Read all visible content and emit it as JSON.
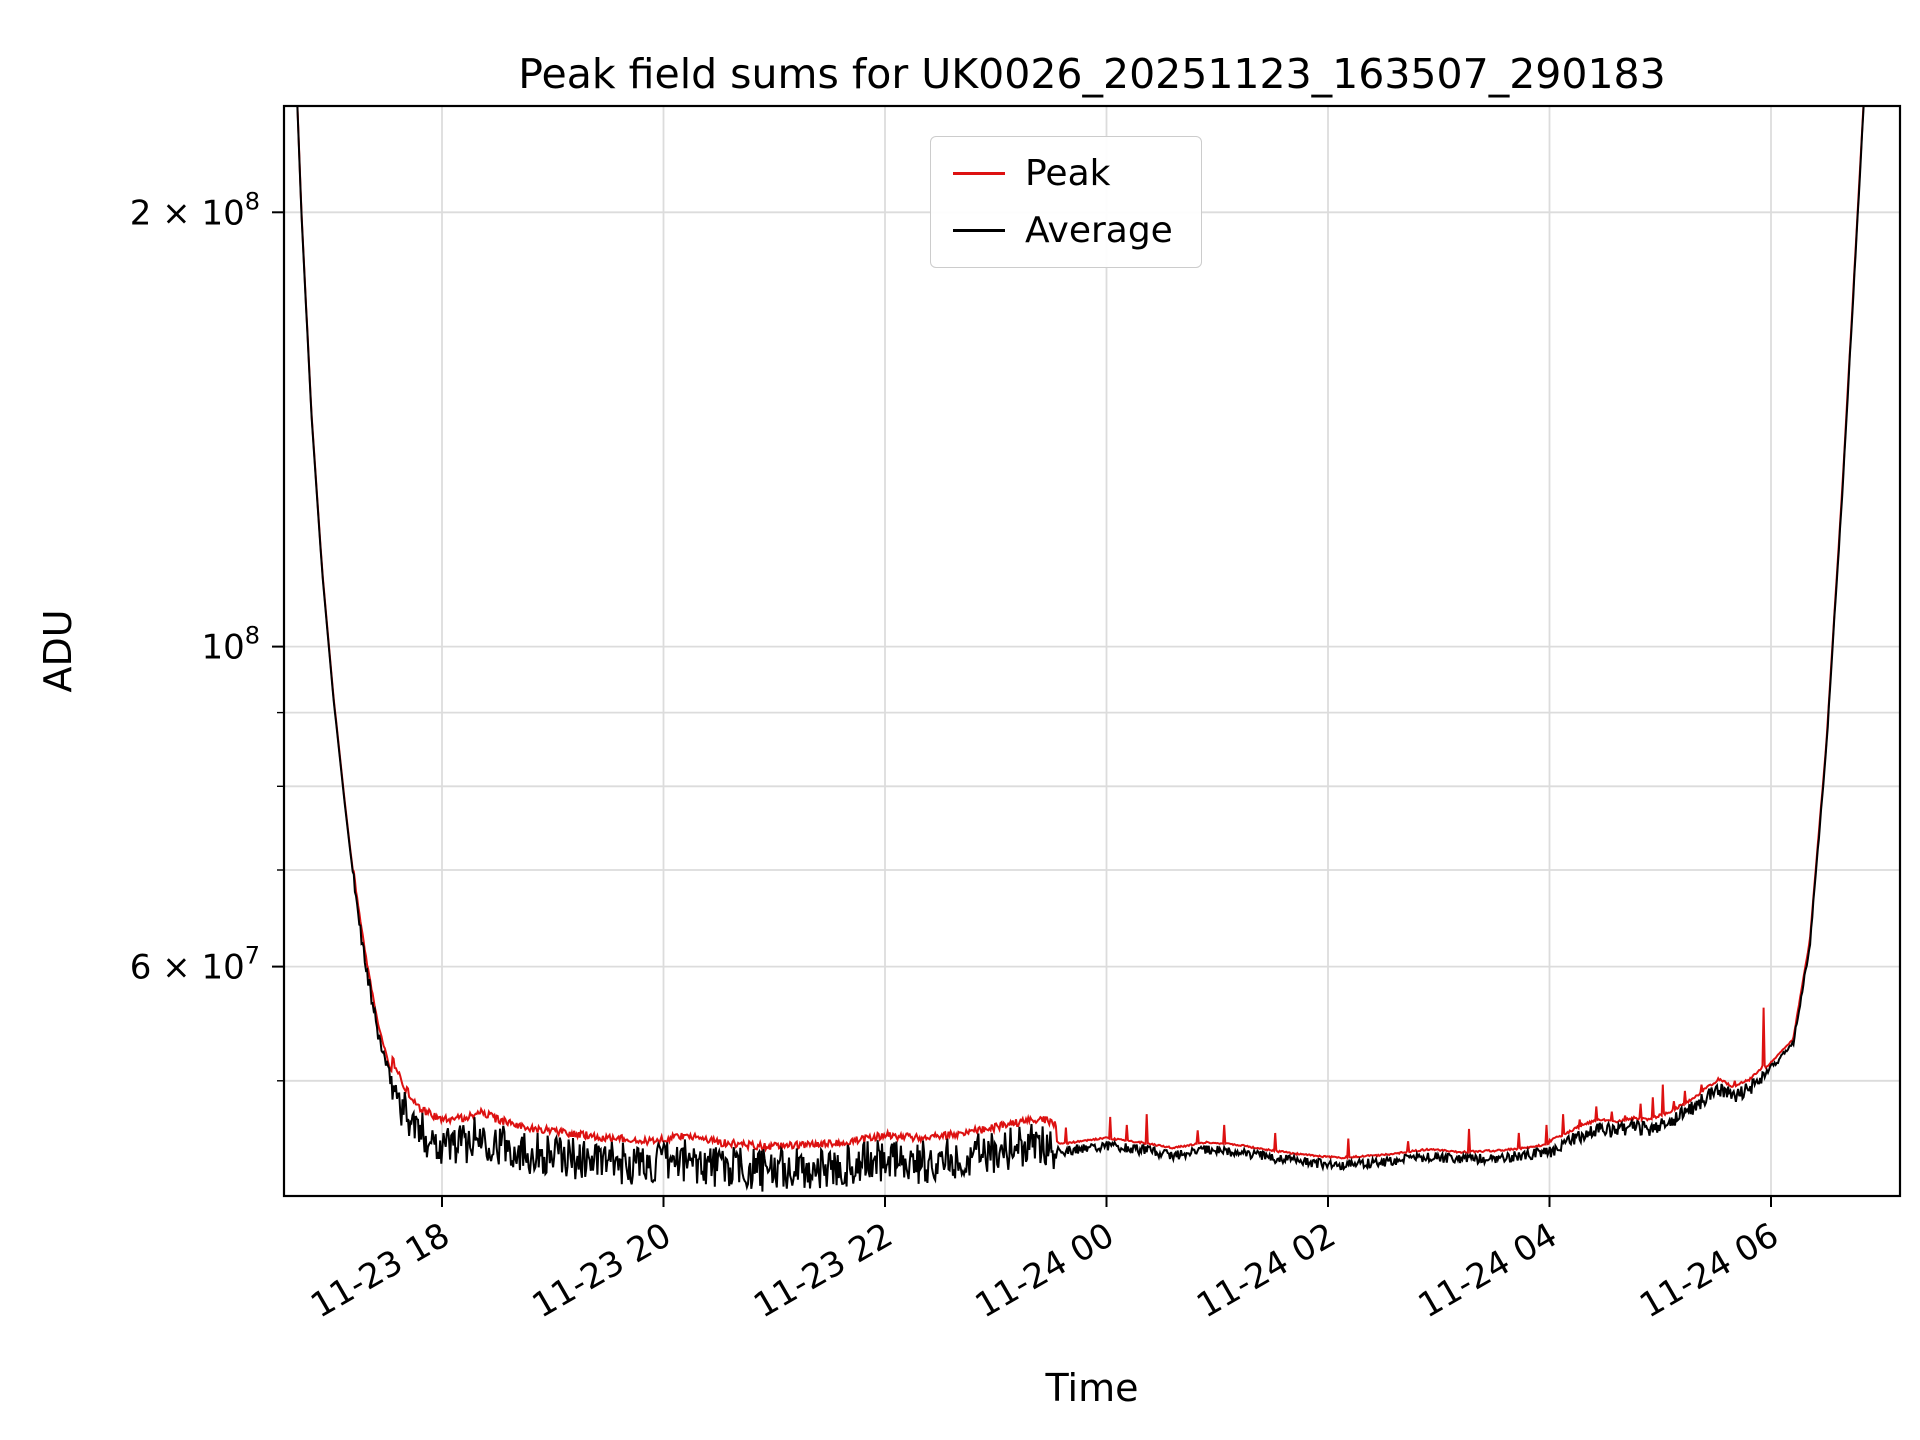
{
  "title": "Peak field sums for UK0026_20251123_163507_290183",
  "axes": {
    "xlabel": "Time",
    "ylabel": "ADU"
  },
  "legend": {
    "location": "upper center",
    "entries": [
      {
        "label": "Peak",
        "color": "#dd1111"
      },
      {
        "label": "Average",
        "color": "#000000"
      }
    ]
  },
  "chart_data": {
    "type": "line",
    "title": "Peak field sums for UK0026_20251123_163507_290183",
    "xlabel": "Time",
    "ylabel": "ADU",
    "yscale": "log",
    "grid": true,
    "x_unit": "hours since 2025-11-23 16:00",
    "xlim": [
      0.573,
      15.165
    ],
    "ylim": [
      41600000.0,
      237000000.0
    ],
    "x_ticks": [
      {
        "t": 2,
        "label": "11-23 18"
      },
      {
        "t": 4,
        "label": "11-23 20"
      },
      {
        "t": 6,
        "label": "11-23 22"
      },
      {
        "t": 8,
        "label": "11-24 00"
      },
      {
        "t": 10,
        "label": "11-24 02"
      },
      {
        "t": 12,
        "label": "11-24 04"
      },
      {
        "t": 14,
        "label": "11-24 06"
      }
    ],
    "y_ticks": [
      {
        "v": 200000000.0,
        "major": true,
        "base": "2 × 10",
        "exp": "8"
      },
      {
        "v": 100000000.0,
        "major": true,
        "base": "10",
        "exp": "8"
      },
      {
        "v": 90000000.0,
        "major": false
      },
      {
        "v": 80000000.0,
        "major": false
      },
      {
        "v": 70000000.0,
        "major": false
      },
      {
        "v": 60000000.0,
        "major": true,
        "base": "6 × 10",
        "exp": "7"
      },
      {
        "v": 50000000.0,
        "major": false
      }
    ],
    "series": [
      {
        "name": "Peak",
        "color": "#dd1111",
        "derived": "envelope_top_of_base_plus_spikes"
      },
      {
        "name": "Average",
        "color": "#000000",
        "derived": "base_with_noise_band"
      }
    ],
    "base_points": [
      [
        0.57,
        450000000.0
      ],
      [
        0.65,
        290000000.0
      ],
      [
        0.73,
        200000000.0
      ],
      [
        0.82,
        145000000.0
      ],
      [
        0.92,
        112000000.0
      ],
      [
        1.02,
        92000000.0
      ],
      [
        1.12,
        78000000.0
      ],
      [
        1.22,
        67000000.0
      ],
      [
        1.32,
        59500000.0
      ],
      [
        1.42,
        54000000.0
      ],
      [
        1.52,
        50500000.0
      ],
      [
        1.65,
        47800000.0
      ],
      [
        1.8,
        46000000.0
      ],
      [
        2.0,
        45200000.0
      ],
      [
        2.2,
        45300000.0
      ],
      [
        2.35,
        45800000.0
      ],
      [
        2.5,
        45200000.0
      ],
      [
        2.8,
        44600000.0
      ],
      [
        3.1,
        44300000.0
      ],
      [
        3.5,
        43900000.0
      ],
      [
        3.9,
        43700000.0
      ],
      [
        4.2,
        44100000.0
      ],
      [
        4.5,
        43600000.0
      ],
      [
        4.9,
        43300000.0
      ],
      [
        5.3,
        43400000.0
      ],
      [
        5.7,
        43700000.0
      ],
      [
        6.0,
        44100000.0
      ],
      [
        6.3,
        43900000.0
      ],
      [
        6.6,
        44100000.0
      ],
      [
        6.9,
        44500000.0
      ],
      [
        7.2,
        45000000.0
      ],
      [
        7.4,
        45300000.0
      ],
      [
        7.6,
        44700000.0
      ],
      [
        7.8,
        44900000.0
      ],
      [
        8.0,
        45100000.0
      ],
      [
        8.3,
        44800000.0
      ],
      [
        8.6,
        44400000.0
      ],
      [
        8.9,
        44800000.0
      ],
      [
        9.2,
        44600000.0
      ],
      [
        9.5,
        44200000.0
      ],
      [
        9.8,
        43900000.0
      ],
      [
        10.1,
        43700000.0
      ],
      [
        10.5,
        43900000.0
      ],
      [
        10.9,
        44300000.0
      ],
      [
        11.2,
        44100000.0
      ],
      [
        11.5,
        44200000.0
      ],
      [
        11.8,
        44400000.0
      ],
      [
        12.0,
        44700000.0
      ],
      [
        12.15,
        45300000.0
      ],
      [
        12.3,
        45900000.0
      ],
      [
        12.45,
        46300000.0
      ],
      [
        12.6,
        46100000.0
      ],
      [
        12.75,
        46400000.0
      ],
      [
        12.9,
        46300000.0
      ],
      [
        13.1,
        46900000.0
      ],
      [
        13.3,
        47900000.0
      ],
      [
        13.45,
        48900000.0
      ],
      [
        13.55,
        49300000.0
      ],
      [
        13.65,
        48800000.0
      ],
      [
        13.8,
        49300000.0
      ],
      [
        13.95,
        50600000.0
      ],
      [
        14.2,
        53000000.0
      ],
      [
        14.35,
        62000000.0
      ],
      [
        14.5,
        85000000.0
      ],
      [
        14.65,
        130000000.0
      ],
      [
        14.8,
        210000000.0
      ],
      [
        14.95,
        340000000.0
      ],
      [
        15.1,
        520000000.0
      ]
    ],
    "noise_segments": [
      [
        1.2,
        1.55,
        0.005
      ],
      [
        1.55,
        7.55,
        0.015
      ],
      [
        7.55,
        12.0,
        0.0035
      ],
      [
        12.0,
        13.95,
        0.005
      ],
      [
        13.95,
        15.2,
        0.002
      ]
    ],
    "spikes": [
      [
        7.45,
        47000000.0
      ],
      [
        7.63,
        46400000.0
      ],
      [
        8.03,
        47200000.0
      ],
      [
        8.18,
        46600000.0
      ],
      [
        8.36,
        47400000.0
      ],
      [
        8.82,
        46200000.0
      ],
      [
        9.06,
        46600000.0
      ],
      [
        9.52,
        46000000.0
      ],
      [
        10.18,
        45600000.0
      ],
      [
        10.72,
        45400000.0
      ],
      [
        11.27,
        46300000.0
      ],
      [
        11.72,
        46000000.0
      ],
      [
        11.97,
        46600000.0
      ],
      [
        12.12,
        47400000.0
      ],
      [
        12.27,
        47000000.0
      ],
      [
        12.42,
        48000000.0
      ],
      [
        12.56,
        47600000.0
      ],
      [
        12.68,
        47300000.0
      ],
      [
        12.82,
        48200000.0
      ],
      [
        12.93,
        48700000.0
      ],
      [
        13.02,
        49700000.0
      ],
      [
        13.12,
        48400000.0
      ],
      [
        13.22,
        49200000.0
      ],
      [
        13.37,
        49700000.0
      ],
      [
        13.52,
        50200000.0
      ],
      [
        13.67,
        50000000.0
      ],
      [
        13.93,
        56200000.0
      ]
    ]
  }
}
